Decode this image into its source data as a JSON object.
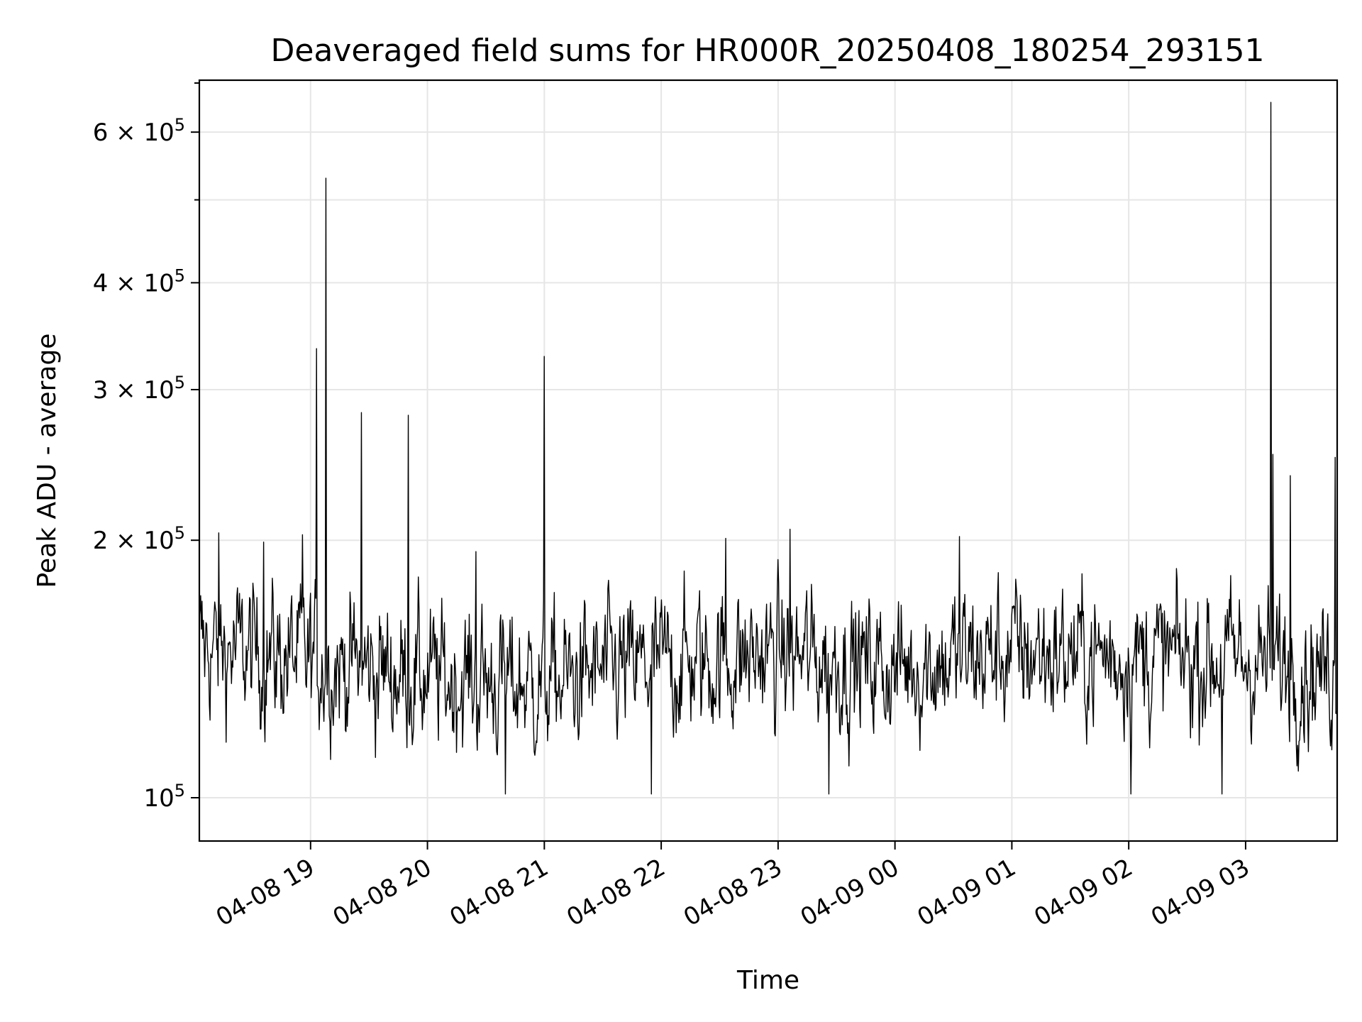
{
  "chart_data": {
    "type": "line",
    "title": "Deaveraged field sums for HR000R_20250408_180254_293151",
    "xlabel": "Time",
    "ylabel": "Peak ADU - average",
    "yscale": "log",
    "xlim": [
      "2025-04-08T18:02:54",
      "2025-04-09T03:47:00"
    ],
    "ylim": [
      89000,
      690000
    ],
    "grid": true,
    "legend": "none",
    "line_color": "#000000",
    "x_ticks": [
      {
        "value": "2025-04-08T19:00:00",
        "label": "04-08 19"
      },
      {
        "value": "2025-04-08T20:00:00",
        "label": "04-08 20"
      },
      {
        "value": "2025-04-08T21:00:00",
        "label": "04-08 21"
      },
      {
        "value": "2025-04-08T22:00:00",
        "label": "04-08 22"
      },
      {
        "value": "2025-04-08T23:00:00",
        "label": "04-08 23"
      },
      {
        "value": "2025-04-09T00:00:00",
        "label": "04-09 00"
      },
      {
        "value": "2025-04-09T01:00:00",
        "label": "04-09 01"
      },
      {
        "value": "2025-04-09T02:00:00",
        "label": "04-09 02"
      },
      {
        "value": "2025-04-09T03:00:00",
        "label": "04-09 03"
      }
    ],
    "y_major_ticks": [
      {
        "value": 100000,
        "mantissa": "",
        "exp": "5"
      },
      {
        "value": 200000,
        "mantissa": "2",
        "exp": "5"
      },
      {
        "value": 300000,
        "mantissa": "3",
        "exp": "5"
      },
      {
        "value": 400000,
        "mantissa": "4",
        "exp": "5"
      },
      {
        "value": 600000,
        "mantissa": "6",
        "exp": "5"
      }
    ],
    "y_minor_ticks": [
      500000
    ],
    "y_tick_base": "10",
    "baseline": {
      "x": [
        "2025-04-08T18:02:54",
        "2025-04-08T19:00:00",
        "2025-04-08T20:00:00",
        "2025-04-08T21:00:00",
        "2025-04-08T22:00:00",
        "2025-04-08T23:00:00",
        "2025-04-09T00:00:00",
        "2025-04-09T01:00:00",
        "2025-04-09T02:00:00",
        "2025-04-09T03:00:00",
        "2025-04-09T03:47:00"
      ],
      "y": [
        150000,
        145000,
        138000,
        136000,
        143000,
        147000,
        142000,
        148000,
        146000,
        145000,
        140000
      ],
      "spread": 0.13,
      "floor": 101000,
      "ceil": 205000
    },
    "spikes": [
      {
        "x": "2025-04-08T18:13:00",
        "y": 204000
      },
      {
        "x": "2025-04-08T18:36:00",
        "y": 199000
      },
      {
        "x": "2025-04-08T18:56:00",
        "y": 203000
      },
      {
        "x": "2025-04-08T19:03:00",
        "y": 335000
      },
      {
        "x": "2025-04-08T19:08:00",
        "y": 530000
      },
      {
        "x": "2025-04-08T19:26:00",
        "y": 282000
      },
      {
        "x": "2025-04-08T19:50:00",
        "y": 280000
      },
      {
        "x": "2025-04-08T20:25:00",
        "y": 194000
      },
      {
        "x": "2025-04-08T20:40:00",
        "y": 101000
      },
      {
        "x": "2025-04-08T21:00:00",
        "y": 328000
      },
      {
        "x": "2025-04-08T21:55:00",
        "y": 101000
      },
      {
        "x": "2025-04-08T22:33:00",
        "y": 201000
      },
      {
        "x": "2025-04-08T23:06:00",
        "y": 206000
      },
      {
        "x": "2025-04-08T23:26:00",
        "y": 101000
      },
      {
        "x": "2025-04-09T00:33:00",
        "y": 202000
      },
      {
        "x": "2025-04-09T02:01:00",
        "y": 101000
      },
      {
        "x": "2025-04-09T02:48:00",
        "y": 101000
      },
      {
        "x": "2025-04-09T03:13:00",
        "y": 650000
      },
      {
        "x": "2025-04-09T03:14:00",
        "y": 252000
      },
      {
        "x": "2025-04-09T03:23:00",
        "y": 238000
      },
      {
        "x": "2025-04-09T03:46:00",
        "y": 250000
      }
    ]
  }
}
